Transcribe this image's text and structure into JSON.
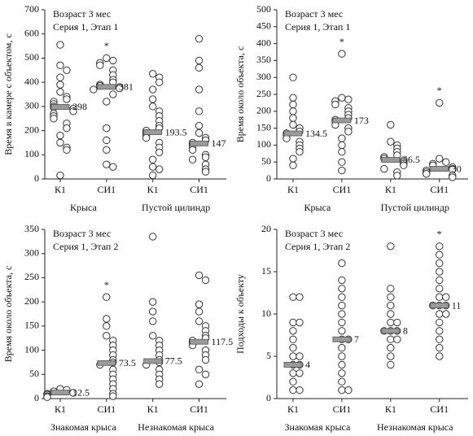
{
  "chart_data": [
    {
      "type": "dotplot",
      "title": [
        "Возраст 3 мес",
        "Серия 1, Этап 1"
      ],
      "ylabel": "Время в камере с объектом, с",
      "ylim": [
        0,
        700
      ],
      "yticks": [
        0,
        100,
        200,
        300,
        400,
        500,
        600,
        700
      ],
      "categories": [
        "К1",
        "СИ1",
        "К1",
        "СИ1"
      ],
      "groups": [
        "Крыса",
        "Пустой цилиндр"
      ],
      "medians": [
        298,
        381,
        193.5,
        147
      ],
      "annotations": [
        null,
        "*",
        null,
        null
      ],
      "points": [
        [
          555,
          470,
          450,
          420,
          390,
          360,
          340,
          330,
          320,
          310,
          300,
          295,
          290,
          280,
          270,
          260,
          250,
          230,
          210,
          180,
          150,
          130,
          120,
          15
        ],
        [
          500,
          490,
          480,
          470,
          450,
          430,
          410,
          400,
          390,
          385,
          380,
          375,
          370,
          350,
          320,
          210,
          160,
          120,
          60,
          50
        ],
        [
          435,
          420,
          400,
          370,
          330,
          300,
          280,
          260,
          240,
          220,
          210,
          200,
          190,
          180,
          170,
          150,
          130,
          110,
          80,
          50,
          40,
          15
        ],
        [
          580,
          490,
          460,
          370,
          280,
          220,
          190,
          170,
          160,
          150,
          140,
          130,
          120,
          100,
          90,
          80,
          60,
          40,
          30
        ]
      ]
    },
    {
      "type": "dotplot",
      "title": [
        "Возраст 3 мес",
        "Серия 1, Этап 1"
      ],
      "ylabel": "Время около объекта, с",
      "ylim": [
        0,
        500
      ],
      "yticks": [
        0,
        50,
        100,
        150,
        200,
        250,
        300,
        350,
        400,
        450,
        500
      ],
      "categories": [
        "К1",
        "СИ1",
        "К1",
        "СИ1"
      ],
      "groups": [
        "Крыса",
        "Пустой цилиндр"
      ],
      "medians": [
        134.5,
        173,
        56.5,
        30
      ],
      "annotations": [
        null,
        "*",
        null,
        "*"
      ],
      "points": [
        [
          300,
          240,
          220,
          200,
          180,
          160,
          150,
          140,
          135,
          130,
          120,
          110,
          100,
          90,
          80,
          60,
          40
        ],
        [
          370,
          240,
          235,
          230,
          220,
          210,
          200,
          190,
          180,
          175,
          170,
          160,
          150,
          140,
          120,
          100,
          80,
          50,
          25
        ],
        [
          160,
          110,
          100,
          90,
          80,
          70,
          65,
          60,
          55,
          50,
          45,
          40,
          30,
          20,
          10
        ],
        [
          225,
          60,
          50,
          45,
          40,
          35,
          30,
          28,
          25,
          20,
          15,
          10,
          5
        ]
      ]
    },
    {
      "type": "dotplot",
      "title": [
        "Возраст 3 мес",
        "Серия 1, Этап 2"
      ],
      "ylabel": "Время около объекта, с",
      "ylim": [
        0,
        350
      ],
      "yticks": [
        0,
        50,
        100,
        150,
        200,
        250,
        300,
        350
      ],
      "categories": [
        "К1",
        "СИ1",
        "К1",
        "СИ1"
      ],
      "groups": [
        "Знакомая крыса",
        "Незнакомая крыса"
      ],
      "medians": [
        12.5,
        73.5,
        77.5,
        117.5
      ],
      "annotations": [
        null,
        "*",
        null,
        null
      ],
      "points": [
        [
          20,
          18,
          15,
          12,
          10,
          8,
          5,
          3
        ],
        [
          210,
          165,
          150,
          130,
          120,
          110,
          100,
          90,
          80,
          75,
          70,
          60,
          50,
          40,
          30,
          20,
          10,
          5
        ],
        [
          335,
          200,
          180,
          160,
          130,
          120,
          110,
          100,
          90,
          80,
          75,
          70,
          60,
          50,
          40,
          30
        ],
        [
          255,
          245,
          195,
          180,
          160,
          150,
          140,
          130,
          125,
          120,
          115,
          110,
          100,
          90,
          80,
          60,
          50,
          30
        ]
      ]
    },
    {
      "type": "dotplot",
      "title": [
        "Возраст 3 мес",
        "Серия 1, Этап 2"
      ],
      "ylabel": "Подходы к объекту",
      "ylim": [
        0,
        20
      ],
      "yticks": [
        0,
        5,
        10,
        15,
        20
      ],
      "categories": [
        "К1",
        "СИ1",
        "К1",
        "СИ1"
      ],
      "groups": [
        "Знакомая крыса",
        "Незнакомая крыса"
      ],
      "medians": [
        4,
        7,
        8,
        11
      ],
      "annotations": [
        null,
        null,
        null,
        "*"
      ],
      "points": [
        [
          12,
          12,
          9,
          9,
          8,
          7,
          6,
          5,
          5,
          4,
          4,
          3,
          3,
          2,
          1,
          1
        ],
        [
          16,
          14,
          13,
          12,
          11,
          10,
          9,
          8,
          7,
          7,
          6,
          5,
          4,
          3,
          2,
          1,
          1
        ],
        [
          18,
          13,
          12,
          11,
          10,
          9,
          9,
          8,
          8,
          8,
          7,
          7,
          6,
          5,
          4
        ],
        [
          18,
          17,
          16,
          15,
          14,
          13,
          12,
          12,
          11,
          11,
          11,
          10,
          10,
          9,
          8,
          7,
          6,
          5
        ]
      ]
    }
  ]
}
